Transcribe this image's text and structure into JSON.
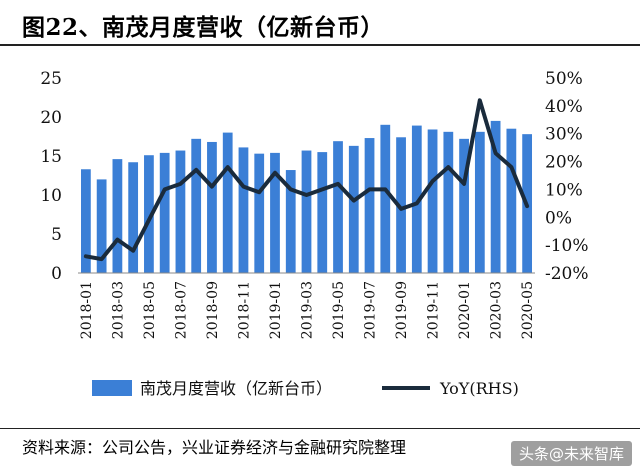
{
  "header": {
    "title": "图22、南茂月度营收（亿新台币）"
  },
  "footer": {
    "source": "资料来源：公司公告，兴业证券经济与金融研究院整理",
    "watermark": "头条@未来智库"
  },
  "chart_data": {
    "type": "bar",
    "categories": [
      "2018-01",
      "2018-02",
      "2018-03",
      "2018-04",
      "2018-05",
      "2018-06",
      "2018-07",
      "2018-08",
      "2018-09",
      "2018-10",
      "2018-11",
      "2018-12",
      "2019-01",
      "2019-02",
      "2019-03",
      "2019-04",
      "2019-05",
      "2019-06",
      "2019-07",
      "2019-08",
      "2019-09",
      "2019-10",
      "2019-11",
      "2019-12",
      "2020-01",
      "2020-02",
      "2020-03",
      "2020-04",
      "2020-05"
    ],
    "x_tick_labels": [
      "2018-01",
      "2018-03",
      "2018-05",
      "2018-07",
      "2018-09",
      "2018-11",
      "2019-01",
      "2019-03",
      "2019-05",
      "2019-07",
      "2019-09",
      "2019-11",
      "2020-01",
      "2020-03",
      "2020-05"
    ],
    "series": [
      {
        "name": "南茂月度营收（亿新台币）",
        "type": "bar",
        "axis": "left",
        "color": "#3b7fd6",
        "values": [
          13.3,
          12.0,
          14.6,
          14.2,
          15.1,
          15.4,
          15.7,
          17.2,
          16.8,
          18.0,
          16.1,
          15.3,
          15.4,
          13.2,
          15.7,
          15.5,
          16.9,
          16.3,
          17.3,
          19.0,
          17.4,
          18.9,
          18.4,
          18.1,
          17.2,
          18.1,
          19.5,
          18.5,
          17.8
        ]
      },
      {
        "name": "YoY(RHS)",
        "type": "line",
        "axis": "right",
        "color": "#1a2b3c",
        "values": [
          -14,
          -15,
          -8,
          -12,
          -1,
          10,
          12,
          17,
          11,
          18,
          11,
          9,
          16,
          10,
          8,
          10,
          12,
          6,
          10,
          10,
          3,
          5,
          13,
          18,
          12,
          42,
          23,
          18,
          4
        ]
      }
    ],
    "left_axis": {
      "min": 0,
      "max": 25,
      "ticks": [
        0,
        5,
        10,
        15,
        20,
        25
      ]
    },
    "right_axis": {
      "min": -20,
      "max": 50,
      "ticks": [
        "-20%",
        "-10%",
        "0%",
        "10%",
        "20%",
        "30%",
        "40%",
        "50%"
      ]
    },
    "legend_position": "bottom",
    "grid": false
  }
}
